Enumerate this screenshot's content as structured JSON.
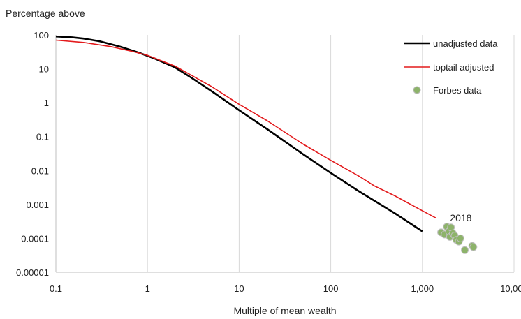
{
  "chart_data": {
    "type": "line",
    "title": "",
    "ylabel": "Percentage above",
    "xlabel": "Multiple of mean wealth",
    "x_scale": "log",
    "y_scale": "log",
    "xlim": [
      0.1,
      10000
    ],
    "ylim": [
      1e-05,
      100
    ],
    "x_ticks": [
      {
        "value": 0.1,
        "label": "0.1"
      },
      {
        "value": 1,
        "label": "1"
      },
      {
        "value": 10,
        "label": "10"
      },
      {
        "value": 100,
        "label": "100"
      },
      {
        "value": 1000,
        "label": "1,000"
      },
      {
        "value": 10000,
        "label": "10,000"
      }
    ],
    "y_ticks": [
      {
        "value": 100,
        "label": "100"
      },
      {
        "value": 10,
        "label": "10"
      },
      {
        "value": 1,
        "label": "1"
      },
      {
        "value": 0.1,
        "label": "0.1"
      },
      {
        "value": 0.01,
        "label": "0.01"
      },
      {
        "value": 0.001,
        "label": "0.001"
      },
      {
        "value": 0.0001,
        "label": "0.0001"
      },
      {
        "value": 1e-05,
        "label": "0.00001"
      }
    ],
    "grid": "vertical",
    "legend_position": "top-right",
    "series": [
      {
        "name": "unadjusted data",
        "style": "line",
        "color": "#000000",
        "points": [
          [
            0.1,
            90
          ],
          [
            0.15,
            85
          ],
          [
            0.2,
            78
          ],
          [
            0.3,
            65
          ],
          [
            0.5,
            45
          ],
          [
            0.8,
            30
          ],
          [
            1.2,
            20
          ],
          [
            2.0,
            11
          ],
          [
            3.0,
            5.5
          ],
          [
            5.0,
            2.2
          ],
          [
            10.0,
            0.6
          ],
          [
            20.0,
            0.17
          ],
          [
            50.0,
            0.03
          ],
          [
            100.0,
            0.0085
          ],
          [
            200.0,
            0.0025
          ],
          [
            500.0,
            0.00055
          ],
          [
            1000.0,
            0.00016
          ]
        ]
      },
      {
        "name": "toptail adjusted",
        "style": "line",
        "color": "#e31a1c",
        "points": [
          [
            0.1,
            70
          ],
          [
            0.2,
            60
          ],
          [
            0.4,
            45
          ],
          [
            0.7,
            32
          ],
          [
            1.0,
            25
          ],
          [
            2.0,
            12
          ],
          [
            3.0,
            6.5
          ],
          [
            5.0,
            3
          ],
          [
            10.0,
            0.9
          ],
          [
            20.0,
            0.3
          ],
          [
            50.0,
            0.06
          ],
          [
            100.0,
            0.02
          ],
          [
            200.0,
            0.007
          ],
          [
            300.0,
            0.0035
          ],
          [
            500.0,
            0.0018
          ],
          [
            1000.0,
            0.00065
          ],
          [
            1400.0,
            0.0004
          ]
        ]
      },
      {
        "name": "Forbes data",
        "style": "scatter",
        "color": "#8db36a",
        "points": [
          [
            1600,
            0.00015
          ],
          [
            1750,
            0.00013
          ],
          [
            1850,
            0.00022
          ],
          [
            1950,
            0.00016
          ],
          [
            2000,
            0.00011
          ],
          [
            2050,
            0.00021
          ],
          [
            2150,
            0.00014
          ],
          [
            2250,
            0.00012
          ],
          [
            2350,
            9e-05
          ],
          [
            2500,
            8e-05
          ],
          [
            2600,
            0.0001
          ],
          [
            2900,
            4.5e-05
          ],
          [
            3500,
            6e-05
          ],
          [
            3600,
            5.5e-05
          ]
        ]
      }
    ],
    "annotations": [
      {
        "text": "2018",
        "x": 2000,
        "y": 0.00032
      }
    ]
  }
}
